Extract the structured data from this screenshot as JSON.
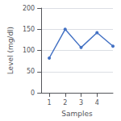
{
  "chart_data": {
    "type": "line",
    "xlabel": "Samples",
    "ylabel": "Level (mg/dl)",
    "x": [
      1,
      2,
      3,
      4,
      5
    ],
    "values": [
      82,
      150,
      107,
      142,
      110
    ],
    "color": "#4472C4",
    "marker": "circle",
    "xlim": [
      0.5,
      5.0
    ],
    "ylim": [
      0,
      200
    ],
    "xticks": [
      1,
      2,
      3,
      4
    ],
    "yticks": [
      0,
      50,
      100,
      150,
      200
    ],
    "grid": true
  }
}
